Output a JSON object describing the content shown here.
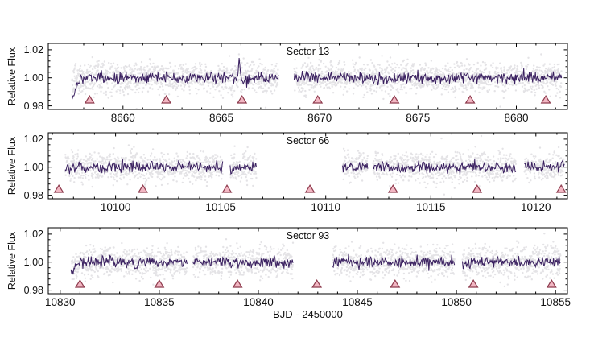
{
  "figure": {
    "xlabel": "BJD - 2450000",
    "ylabel": "Relative Flux",
    "background_color": "#ffffff",
    "axis_color": "#000000",
    "scatter_color": "#d2d0d5",
    "line_color": "#3a2060",
    "transit_marker_fill": "#f2b7c3",
    "transit_marker_stroke": "#8e3c4e"
  },
  "chart_data": [
    {
      "type": "scatter",
      "title": "Sector 13",
      "ylabel": "Relative Flux",
      "xlim": [
        8656.2,
        8682.6
      ],
      "ylim": [
        0.9775,
        1.0245
      ],
      "xticks": [
        8660,
        8665,
        8670,
        8675,
        8680
      ],
      "yticks": [
        "0.98",
        "1.00",
        "1.02"
      ],
      "x_minor_step": 1,
      "y_minor_step": 0.004,
      "baseline_flux": 1.0,
      "scatter_halfwidth_flux": 0.011,
      "line_noise_flux": 0.002,
      "data_segments_x": [
        [
          8657.4,
          8667.9
        ],
        [
          8668.7,
          8682.3
        ]
      ],
      "transit_marker_x": [
        8658.3,
        8662.2,
        8666.05,
        8669.9,
        8673.8,
        8677.65,
        8681.5
      ],
      "marker_flux_y": 0.9845,
      "features": [
        {
          "kind": "ramp",
          "x": 8657.35,
          "w": 0.5,
          "a": -0.0138,
          "note": "low flux at sector start"
        },
        {
          "kind": "spike",
          "x": 8665.9,
          "w": 0.07,
          "a": 0.0138,
          "note": "upward flux spike"
        }
      ],
      "series": [
        {
          "name": "unbinned flux points",
          "style": "scatter",
          "color": "#d2d0d5"
        },
        {
          "name": "binned flux line",
          "style": "line",
          "color": "#3a2060"
        }
      ]
    },
    {
      "type": "scatter",
      "title": "Sector 66",
      "ylabel": "Relative Flux",
      "xlim": [
        10096.8,
        10121.5
      ],
      "ylim": [
        0.9775,
        1.0245
      ],
      "xticks": [
        10100,
        10105,
        10110,
        10115,
        10120
      ],
      "yticks": [
        "0.98",
        "1.00",
        "1.02"
      ],
      "x_minor_step": 1,
      "y_minor_step": 0.004,
      "baseline_flux": 1.0,
      "scatter_halfwidth_flux": 0.011,
      "line_noise_flux": 0.002,
      "data_segments_x": [
        [
          10097.6,
          10105.1
        ],
        [
          10105.45,
          10106.7
        ],
        [
          10110.8,
          10112.0
        ],
        [
          10112.25,
          10119.05
        ],
        [
          10119.45,
          10121.35
        ]
      ],
      "transit_marker_x": [
        10097.3,
        10101.3,
        10105.3,
        10109.25,
        10113.2,
        10117.2,
        10121.2
      ],
      "marker_flux_y": 0.9845,
      "features": [
        {
          "kind": "spike",
          "x": 10105.5,
          "w": 0.15,
          "a": -0.0045,
          "note": "small dip after gap"
        },
        {
          "kind": "trend",
          "x": 10121.0,
          "w": 0.35,
          "a": 0.0035,
          "note": "slight rise at sector end"
        }
      ],
      "series": [
        {
          "name": "unbinned flux points",
          "style": "scatter",
          "color": "#d2d0d5"
        },
        {
          "name": "binned flux line",
          "style": "line",
          "color": "#3a2060"
        }
      ]
    },
    {
      "type": "scatter",
      "title": "Sector 93",
      "ylabel": "Relative Flux",
      "xlim": [
        10829.4,
        10855.6
      ],
      "ylim": [
        0.9775,
        1.0245
      ],
      "xticks": [
        10830,
        10835,
        10840,
        10845,
        10850,
        10855
      ],
      "yticks": [
        "0.98",
        "1.00",
        "1.02"
      ],
      "x_minor_step": 1,
      "y_minor_step": 0.004,
      "baseline_flux": 1.0,
      "scatter_halfwidth_flux": 0.011,
      "line_noise_flux": 0.002,
      "data_segments_x": [
        [
          10830.55,
          10836.4
        ],
        [
          10836.7,
          10841.75
        ],
        [
          10843.75,
          10849.9
        ],
        [
          10850.3,
          10855.25
        ]
      ],
      "transit_marker_x": [
        10831.0,
        10835.0,
        10838.95,
        10842.95,
        10846.9,
        10850.85,
        10854.8
      ],
      "marker_flux_y": 0.9845,
      "features": [
        {
          "kind": "ramp",
          "x": 10830.5,
          "w": 0.6,
          "a": -0.008,
          "note": "low flux at sector start"
        },
        {
          "kind": "spike",
          "x": 10832.55,
          "w": 0.07,
          "a": 0.0068,
          "note": "upward flux spike"
        }
      ],
      "series": [
        {
          "name": "unbinned flux points",
          "style": "scatter",
          "color": "#d2d0d5"
        },
        {
          "name": "binned flux line",
          "style": "line",
          "color": "#3a2060"
        }
      ]
    }
  ]
}
